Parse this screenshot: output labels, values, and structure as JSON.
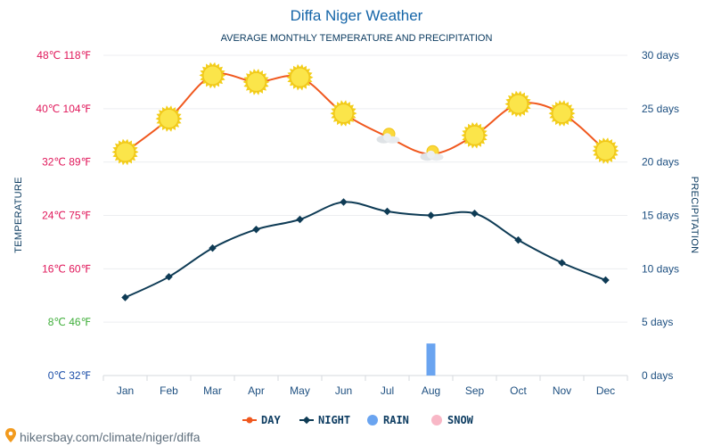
{
  "header": {
    "title": "Diffa Niger Weather",
    "subtitle": "AVERAGE MONTHLY TEMPERATURE AND PRECIPITATION"
  },
  "footer": {
    "source": "hikersbay.com/climate/niger/diffa"
  },
  "chart_data": {
    "type": "line",
    "title": "Diffa Niger Weather",
    "subtitle": "AVERAGE MONTHLY TEMPERATURE AND PRECIPITATION",
    "ylabel": "TEMPERATURE",
    "y2label": "PRECIPITATION",
    "categories": [
      "Jan",
      "Feb",
      "Mar",
      "Apr",
      "May",
      "Jun",
      "Jul",
      "Aug",
      "Sep",
      "Oct",
      "Nov",
      "Dec"
    ],
    "ylim": [
      0,
      48
    ],
    "y2lim": [
      0,
      30
    ],
    "yticks": [
      {
        "value": 0,
        "label": "0℃ 32℉",
        "color": "#1a4da8"
      },
      {
        "value": 8,
        "label": "8℃ 46℉",
        "color": "#3fae3a"
      },
      {
        "value": 16,
        "label": "16℃ 60℉",
        "color": "#e0175a"
      },
      {
        "value": 24,
        "label": "24℃ 75℉",
        "color": "#e0175a"
      },
      {
        "value": 32,
        "label": "32℃ 89℉",
        "color": "#e0175a"
      },
      {
        "value": 40,
        "label": "40℃ 104℉",
        "color": "#e0175a"
      },
      {
        "value": 48,
        "label": "48℃ 118℉",
        "color": "#e0175a"
      }
    ],
    "y2ticks": [
      {
        "value": 0,
        "label": "0 days"
      },
      {
        "value": 5,
        "label": "5 days"
      },
      {
        "value": 10,
        "label": "10 days"
      },
      {
        "value": 15,
        "label": "15 days"
      },
      {
        "value": 20,
        "label": "20 days"
      },
      {
        "value": 25,
        "label": "25 days"
      },
      {
        "value": 30,
        "label": "30 days"
      }
    ],
    "series": [
      {
        "name": "DAY",
        "type": "line",
        "axis": "left",
        "color": "#f0581e",
        "values": [
          33.5,
          38.5,
          45,
          44,
          44.7,
          39.3,
          35.8,
          33.2,
          36,
          40.7,
          39.3,
          33.7
        ],
        "icons": [
          "sun",
          "sun",
          "sun",
          "sun",
          "sun",
          "sun",
          "partly-cloudy",
          "partly-cloudy",
          "sun",
          "sun",
          "sun",
          "sun"
        ]
      },
      {
        "name": "NIGHT",
        "type": "line",
        "axis": "left",
        "color": "#0e3b55",
        "values": [
          11.7,
          14.8,
          19.1,
          21.9,
          23.4,
          26,
          24.6,
          24,
          24.3,
          20.3,
          16.9,
          14.3
        ]
      },
      {
        "name": "RAIN",
        "type": "bar",
        "axis": "right",
        "color": "#6aa4f0",
        "values": [
          0,
          0,
          0,
          0,
          0,
          0,
          0,
          3,
          0,
          0,
          0,
          0
        ]
      },
      {
        "name": "SNOW",
        "type": "bar",
        "axis": "right",
        "color": "#f8b7c6",
        "values": [
          0,
          0,
          0,
          0,
          0,
          0,
          0,
          0,
          0,
          0,
          0,
          0
        ]
      }
    ],
    "grid": true,
    "legend": "bottom"
  }
}
